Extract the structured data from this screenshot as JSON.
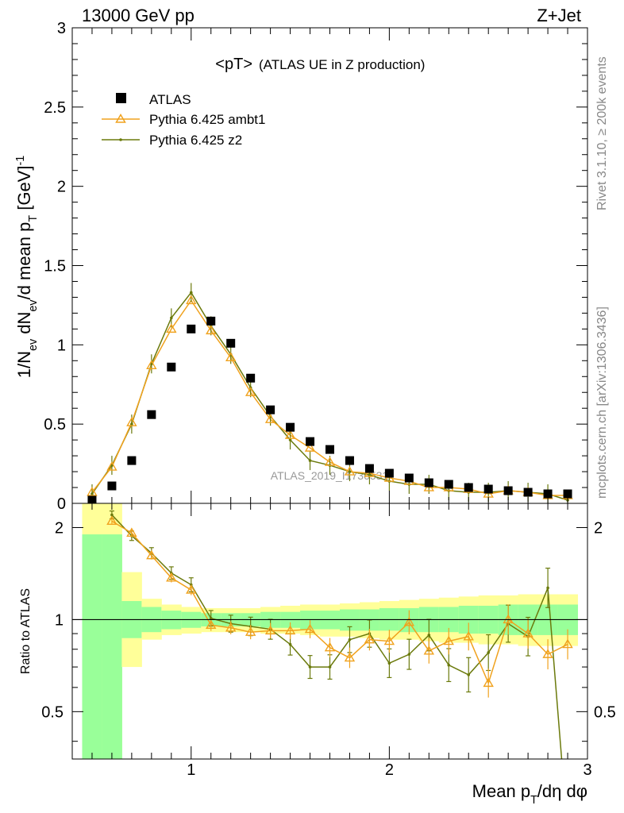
{
  "header": {
    "energy_label": "13000 GeV pp",
    "process_label": "Z+Jet",
    "plot_title": "<pT>",
    "plot_subtitle": "(ATLAS UE in Z production)",
    "side_label_top": "Rivet 3.1.10, ≥ 200k events",
    "side_label_bottom": "mcplots.cern.ch [arXiv:1306.3436]",
    "watermark": "ATLAS_2019_I1736531"
  },
  "axes": {
    "y_label_main": "1/N_ev dN_ev/d mean p_T [GeV]^-1",
    "y_label_ratio": "Ratio to ATLAS",
    "x_label": "Mean p_T/dη dφ",
    "main_y_ticks": [
      "0",
      "0.5",
      "1",
      "1.5",
      "2",
      "2.5",
      "3"
    ],
    "ratio_y_ticks": [
      "0.5",
      "1",
      "2"
    ],
    "x_ticks": [
      "1",
      "2",
      "3"
    ]
  },
  "legend": {
    "atlas": "ATLAS",
    "ambt1": "Pythia 6.425 ambt1",
    "z2": "Pythia 6.425 z2"
  },
  "colors": {
    "atlas": "#000000",
    "ambt1": "#f0a21e",
    "z2": "#6b7a0c",
    "band_inner": "#99ff99",
    "band_outer": "#ffff99"
  },
  "chart_data": [
    {
      "type": "scatter",
      "title": "<pT> (ATLAS UE in Z production)",
      "xlabel": "Mean p_T/dη dφ",
      "ylabel": "1/N_ev dN_ev/d mean p_T [GeV]^-1",
      "xlim": [
        0.4,
        3.0
      ],
      "ylim": [
        0,
        3
      ],
      "series": [
        {
          "name": "ATLAS",
          "x": [
            0.5,
            0.6,
            0.7,
            0.8,
            0.9,
            1.0,
            1.1,
            1.2,
            1.3,
            1.4,
            1.5,
            1.6,
            1.7,
            1.8,
            1.9,
            2.0,
            2.1,
            2.2,
            2.3,
            2.4,
            2.5,
            2.6,
            2.7,
            2.8,
            2.9
          ],
          "y": [
            0.02,
            0.11,
            0.27,
            0.56,
            0.86,
            1.1,
            1.15,
            1.01,
            0.79,
            0.59,
            0.48,
            0.39,
            0.34,
            0.27,
            0.22,
            0.19,
            0.16,
            0.13,
            0.12,
            0.1,
            0.09,
            0.08,
            0.07,
            0.06,
            0.06
          ]
        },
        {
          "name": "Pythia 6.425 ambt1",
          "x": [
            0.5,
            0.6,
            0.7,
            0.8,
            0.9,
            1.0,
            1.1,
            1.2,
            1.3,
            1.4,
            1.5,
            1.6,
            1.7,
            1.8,
            1.9,
            2.0,
            2.1,
            2.2,
            2.3,
            2.4,
            2.5,
            2.6,
            2.7,
            2.8,
            2.9
          ],
          "y": [
            0.07,
            0.23,
            0.51,
            0.87,
            1.1,
            1.28,
            1.09,
            0.92,
            0.7,
            0.53,
            0.43,
            0.35,
            0.26,
            0.2,
            0.19,
            0.16,
            0.14,
            0.1,
            0.1,
            0.09,
            0.06,
            0.08,
            0.07,
            0.05,
            0.05
          ]
        },
        {
          "name": "Pythia 6.425 z2",
          "x": [
            0.5,
            0.6,
            0.7,
            0.8,
            0.9,
            1.0,
            1.1,
            1.2,
            1.3,
            1.4,
            1.5,
            1.6,
            1.7,
            1.8,
            1.9,
            2.0,
            2.1,
            2.2,
            2.3,
            2.4,
            2.5,
            2.6,
            2.7,
            2.8,
            2.9
          ],
          "y": [
            0.06,
            0.24,
            0.5,
            0.88,
            1.17,
            1.33,
            1.12,
            0.94,
            0.73,
            0.55,
            0.4,
            0.27,
            0.24,
            0.2,
            0.18,
            0.14,
            0.12,
            0.12,
            0.08,
            0.07,
            0.07,
            0.08,
            0.07,
            0.06,
            0.02
          ]
        }
      ]
    },
    {
      "type": "line",
      "ylabel": "Ratio to ATLAS",
      "xlabel": "Mean p_T/dη dφ",
      "xlim": [
        0.4,
        3.0
      ],
      "ylim": [
        0.35,
        2.4
      ],
      "log_y": true,
      "reference": 1,
      "series": [
        {
          "name": "Pythia 6.425 ambt1",
          "x": [
            0.6,
            0.7,
            0.8,
            0.9,
            1.0,
            1.1,
            1.2,
            1.3,
            1.4,
            1.5,
            1.6,
            1.7,
            1.8,
            1.9,
            2.0,
            2.1,
            2.2,
            2.3,
            2.4,
            2.5,
            2.6,
            2.7,
            2.8,
            2.9
          ],
          "y": [
            2.1,
            1.92,
            1.62,
            1.37,
            1.25,
            0.96,
            0.94,
            0.91,
            0.92,
            0.92,
            0.93,
            0.81,
            0.75,
            0.86,
            0.85,
            0.98,
            0.79,
            0.85,
            0.88,
            0.62,
            1.0,
            0.9,
            0.77,
            0.83
          ]
        },
        {
          "name": "Pythia 6.425 z2",
          "x": [
            0.6,
            0.7,
            0.8,
            0.9,
            1.0,
            1.1,
            1.2,
            1.3,
            1.4,
            1.5,
            1.6,
            1.7,
            1.8,
            1.9,
            2.0,
            2.1,
            2.2,
            2.3,
            2.4,
            2.5,
            2.6,
            2.7,
            2.8,
            2.9
          ],
          "y": [
            2.2,
            1.88,
            1.65,
            1.42,
            1.3,
            1.01,
            0.97,
            0.95,
            0.93,
            0.83,
            0.7,
            0.7,
            0.86,
            0.9,
            0.72,
            0.77,
            0.89,
            0.71,
            0.66,
            0.78,
            0.97,
            0.88,
            1.27,
            0.2
          ]
        }
      ],
      "uncertainty_bands": {
        "x_edges": [
          0.45,
          0.55,
          0.65,
          0.75,
          0.85,
          0.95,
          1.05,
          1.15,
          1.25,
          1.35,
          1.45,
          1.55,
          1.65,
          1.75,
          1.85,
          1.95,
          2.05,
          2.15,
          2.25,
          2.35,
          2.45,
          2.55,
          2.65,
          2.75,
          2.85,
          2.95
        ],
        "inner_lo": [
          0.35,
          0.35,
          0.87,
          0.91,
          0.93,
          0.94,
          0.95,
          0.95,
          0.95,
          0.94,
          0.94,
          0.93,
          0.93,
          0.92,
          0.92,
          0.92,
          0.91,
          0.91,
          0.91,
          0.9,
          0.9,
          0.89,
          0.89,
          0.89,
          0.89
        ],
        "inner_hi": [
          1.9,
          1.9,
          1.15,
          1.1,
          1.07,
          1.06,
          1.05,
          1.05,
          1.05,
          1.06,
          1.06,
          1.07,
          1.07,
          1.08,
          1.08,
          1.09,
          1.09,
          1.1,
          1.1,
          1.11,
          1.11,
          1.12,
          1.12,
          1.12,
          1.12
        ],
        "outer_lo": [
          0.35,
          0.35,
          0.7,
          0.86,
          0.89,
          0.9,
          0.91,
          0.91,
          0.91,
          0.9,
          0.9,
          0.89,
          0.88,
          0.88,
          0.87,
          0.86,
          0.86,
          0.85,
          0.84,
          0.84,
          0.83,
          0.83,
          0.82,
          0.82,
          0.82
        ],
        "outer_hi": [
          2.4,
          2.4,
          1.43,
          1.17,
          1.12,
          1.1,
          1.09,
          1.09,
          1.09,
          1.1,
          1.11,
          1.12,
          1.12,
          1.13,
          1.14,
          1.15,
          1.16,
          1.17,
          1.18,
          1.19,
          1.2,
          1.2,
          1.21,
          1.21,
          1.21
        ]
      }
    }
  ]
}
